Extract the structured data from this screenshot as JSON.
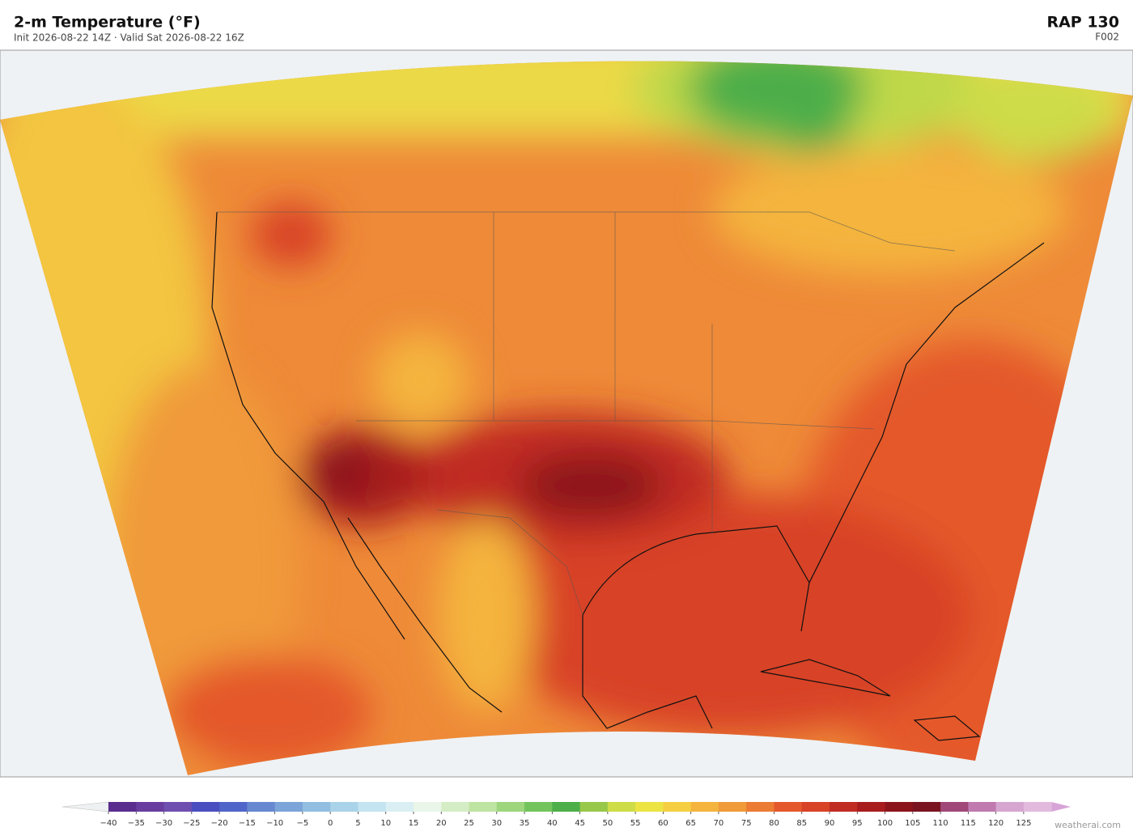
{
  "header": {
    "title": "2-m Temperature  (°F)",
    "subtitle": "Init 2026-08-22 14Z  ·  Valid Sat 2026-08-22 16Z",
    "model": "RAP  130",
    "forecast_hour": "F002"
  },
  "colorbar": {
    "ticks": [
      {
        "value": -40,
        "label": "−40"
      },
      {
        "value": -35,
        "label": "−35"
      },
      {
        "value": -30,
        "label": "−30"
      },
      {
        "value": -25,
        "label": "−25"
      },
      {
        "value": -20,
        "label": "−20"
      },
      {
        "value": -15,
        "label": "−15"
      },
      {
        "value": -10,
        "label": "−10"
      },
      {
        "value": -5,
        "label": "−5"
      },
      0,
      5,
      10,
      15,
      20,
      25,
      30,
      35,
      40,
      45,
      50,
      55,
      60,
      65,
      70,
      75,
      80,
      85,
      90,
      95,
      100,
      105,
      110,
      115,
      120,
      125
    ],
    "colors": [
      "#5a2d8e",
      "#683d9f",
      "#6e4fb0",
      "#4a4fbf",
      "#4f65c9",
      "#6788d1",
      "#7ba4d8",
      "#92bee1",
      "#aad3e9",
      "#c4e4f1",
      "#d9eff3",
      "#e9f6e9",
      "#d5edc5",
      "#bee4a1",
      "#9dd67d",
      "#73c45d",
      "#4daf49",
      "#98c849",
      "#cedc48",
      "#ece443",
      "#f5cf41",
      "#f4b43d",
      "#f09a3a",
      "#ec7c33",
      "#e4582b",
      "#d84227",
      "#c02c22",
      "#a81c1e",
      "#8c151b",
      "#7a1420",
      "#a04878",
      "#c07ab0",
      "#d6a6d0",
      "#e2bade"
    ],
    "under_color": "#eef1f1",
    "over_color": "#d8a4d8"
  },
  "credit": "weatherai.com"
}
